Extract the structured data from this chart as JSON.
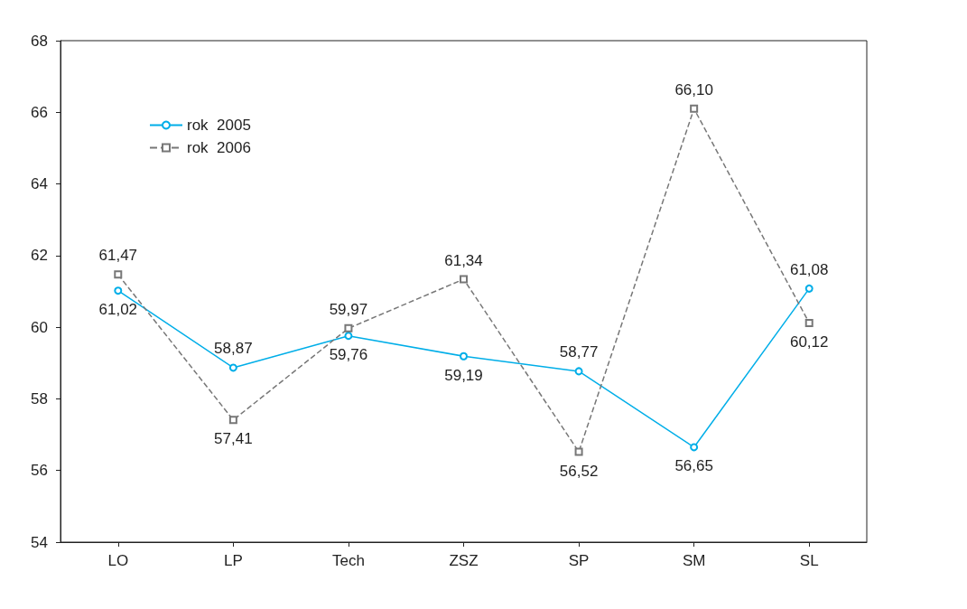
{
  "chart_data": {
    "type": "line",
    "categories": [
      "LO",
      "LP",
      "Tech",
      "ZSZ",
      "SP",
      "SM",
      "SL"
    ],
    "series": [
      {
        "name": "rok  2005",
        "color": "#00aee8",
        "marker": "circle",
        "line_style": "solid",
        "values": [
          61.02,
          58.87,
          59.76,
          59.19,
          58.77,
          56.65,
          61.08
        ],
        "value_labels": [
          "61,02",
          "58,87",
          "59,76",
          "59,19",
          "58,77",
          "56,65",
          "61,08"
        ]
      },
      {
        "name": "rok  2006",
        "color": "#777777",
        "marker": "square",
        "line_style": "dashed",
        "values": [
          61.47,
          57.41,
          59.97,
          61.34,
          56.52,
          66.1,
          60.12
        ],
        "value_labels": [
          "61,47",
          "57,41",
          "59,97",
          "61,34",
          "56,52",
          "66,10",
          "60,12"
        ]
      }
    ],
    "ylim": [
      54,
      68
    ],
    "yticks": [
      54,
      56,
      58,
      60,
      62,
      64,
      66,
      68
    ],
    "grid": false,
    "legend": "top left"
  }
}
